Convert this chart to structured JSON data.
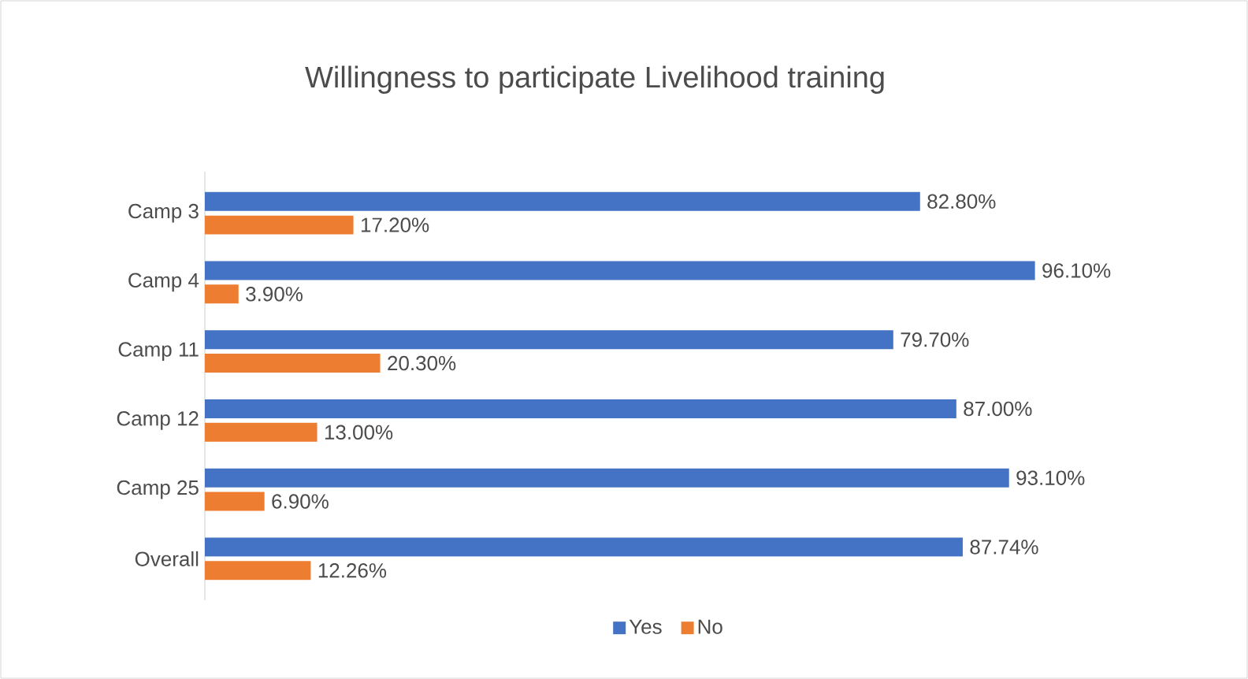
{
  "chart_data": {
    "type": "bar",
    "orientation": "horizontal",
    "title": "Willingness to participate Livelihood training",
    "categories": [
      "Camp 3",
      "Camp 4",
      "Camp 11",
      "Camp 12",
      "Camp 25",
      "Overall"
    ],
    "series": [
      {
        "name": "Yes",
        "color": "#4472c4",
        "values": [
          82.8,
          96.1,
          79.7,
          87.0,
          93.1,
          87.74
        ],
        "value_labels": [
          "82.80%",
          "96.10%",
          "79.70%",
          "87.00%",
          "93.10%",
          "87.74%"
        ]
      },
      {
        "name": "No",
        "color": "#ed7d31",
        "values": [
          17.2,
          3.9,
          20.3,
          13.0,
          6.9,
          12.26
        ],
        "value_labels": [
          "17.20%",
          "3.90%",
          "20.30%",
          "13.00%",
          "6.90%",
          "12.26%"
        ]
      }
    ],
    "legend": "bottom",
    "tick_labels": "y"
  }
}
